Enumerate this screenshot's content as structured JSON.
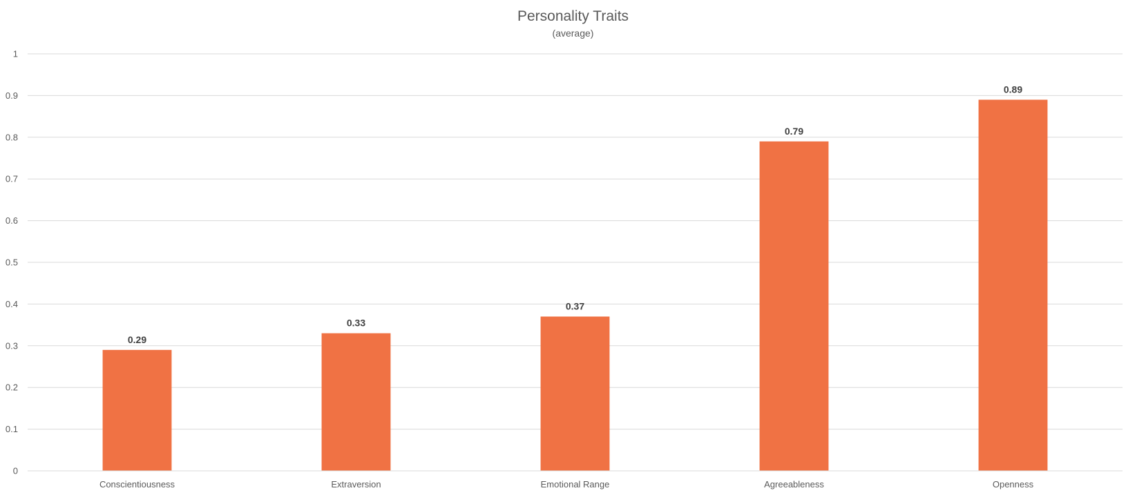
{
  "chart_data": {
    "type": "bar",
    "title": "Personality Traits",
    "subtitle": "(average)",
    "categories": [
      "Conscientiousness",
      "Extraversion",
      "Emotional Range",
      "Agreeableness",
      "Openness"
    ],
    "values": [
      0.29,
      0.33,
      0.37,
      0.79,
      0.89
    ],
    "data_labels": [
      "0.29",
      "0.33",
      "0.37",
      "0.79",
      "0.89"
    ],
    "ylim": [
      0,
      1
    ],
    "y_ticks": [
      "0",
      "0.1",
      "0.2",
      "0.3",
      "0.4",
      "0.5",
      "0.6",
      "0.7",
      "0.8",
      "0.9",
      "1"
    ],
    "xlabel": "",
    "ylabel": "",
    "grid": true,
    "legend": "none",
    "bar_color": "#f07244"
  }
}
